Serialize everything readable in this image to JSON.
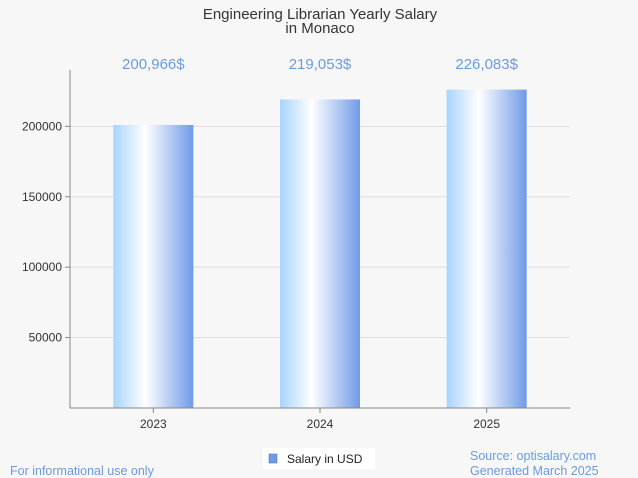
{
  "chart_data": {
    "type": "bar",
    "title_lines": [
      "Engineering Librarian Yearly Salary",
      "in Monaco"
    ],
    "categories": [
      "2023",
      "2024",
      "2025"
    ],
    "series": [
      {
        "name": "Salary in USD",
        "values": [
          200966,
          219053,
          226083
        ]
      }
    ],
    "data_labels": [
      "200,966$",
      "219,053$",
      "226,083$"
    ],
    "y_ticks": [
      50000,
      100000,
      150000,
      200000
    ],
    "ylim": [
      0,
      240000
    ],
    "grid": true,
    "legend_position": "bottom-center"
  },
  "footer": {
    "left": "For informational use only",
    "source": "Source: optisalary.com",
    "generated": "Generated March 2025"
  },
  "colors": {
    "bar_edge": "#6f9ae8",
    "bar_light": "#ffffff",
    "bar_left": "#a9d4ff",
    "label": "#6b9bdc",
    "grid": "#dddddd",
    "axis": "#888888"
  }
}
